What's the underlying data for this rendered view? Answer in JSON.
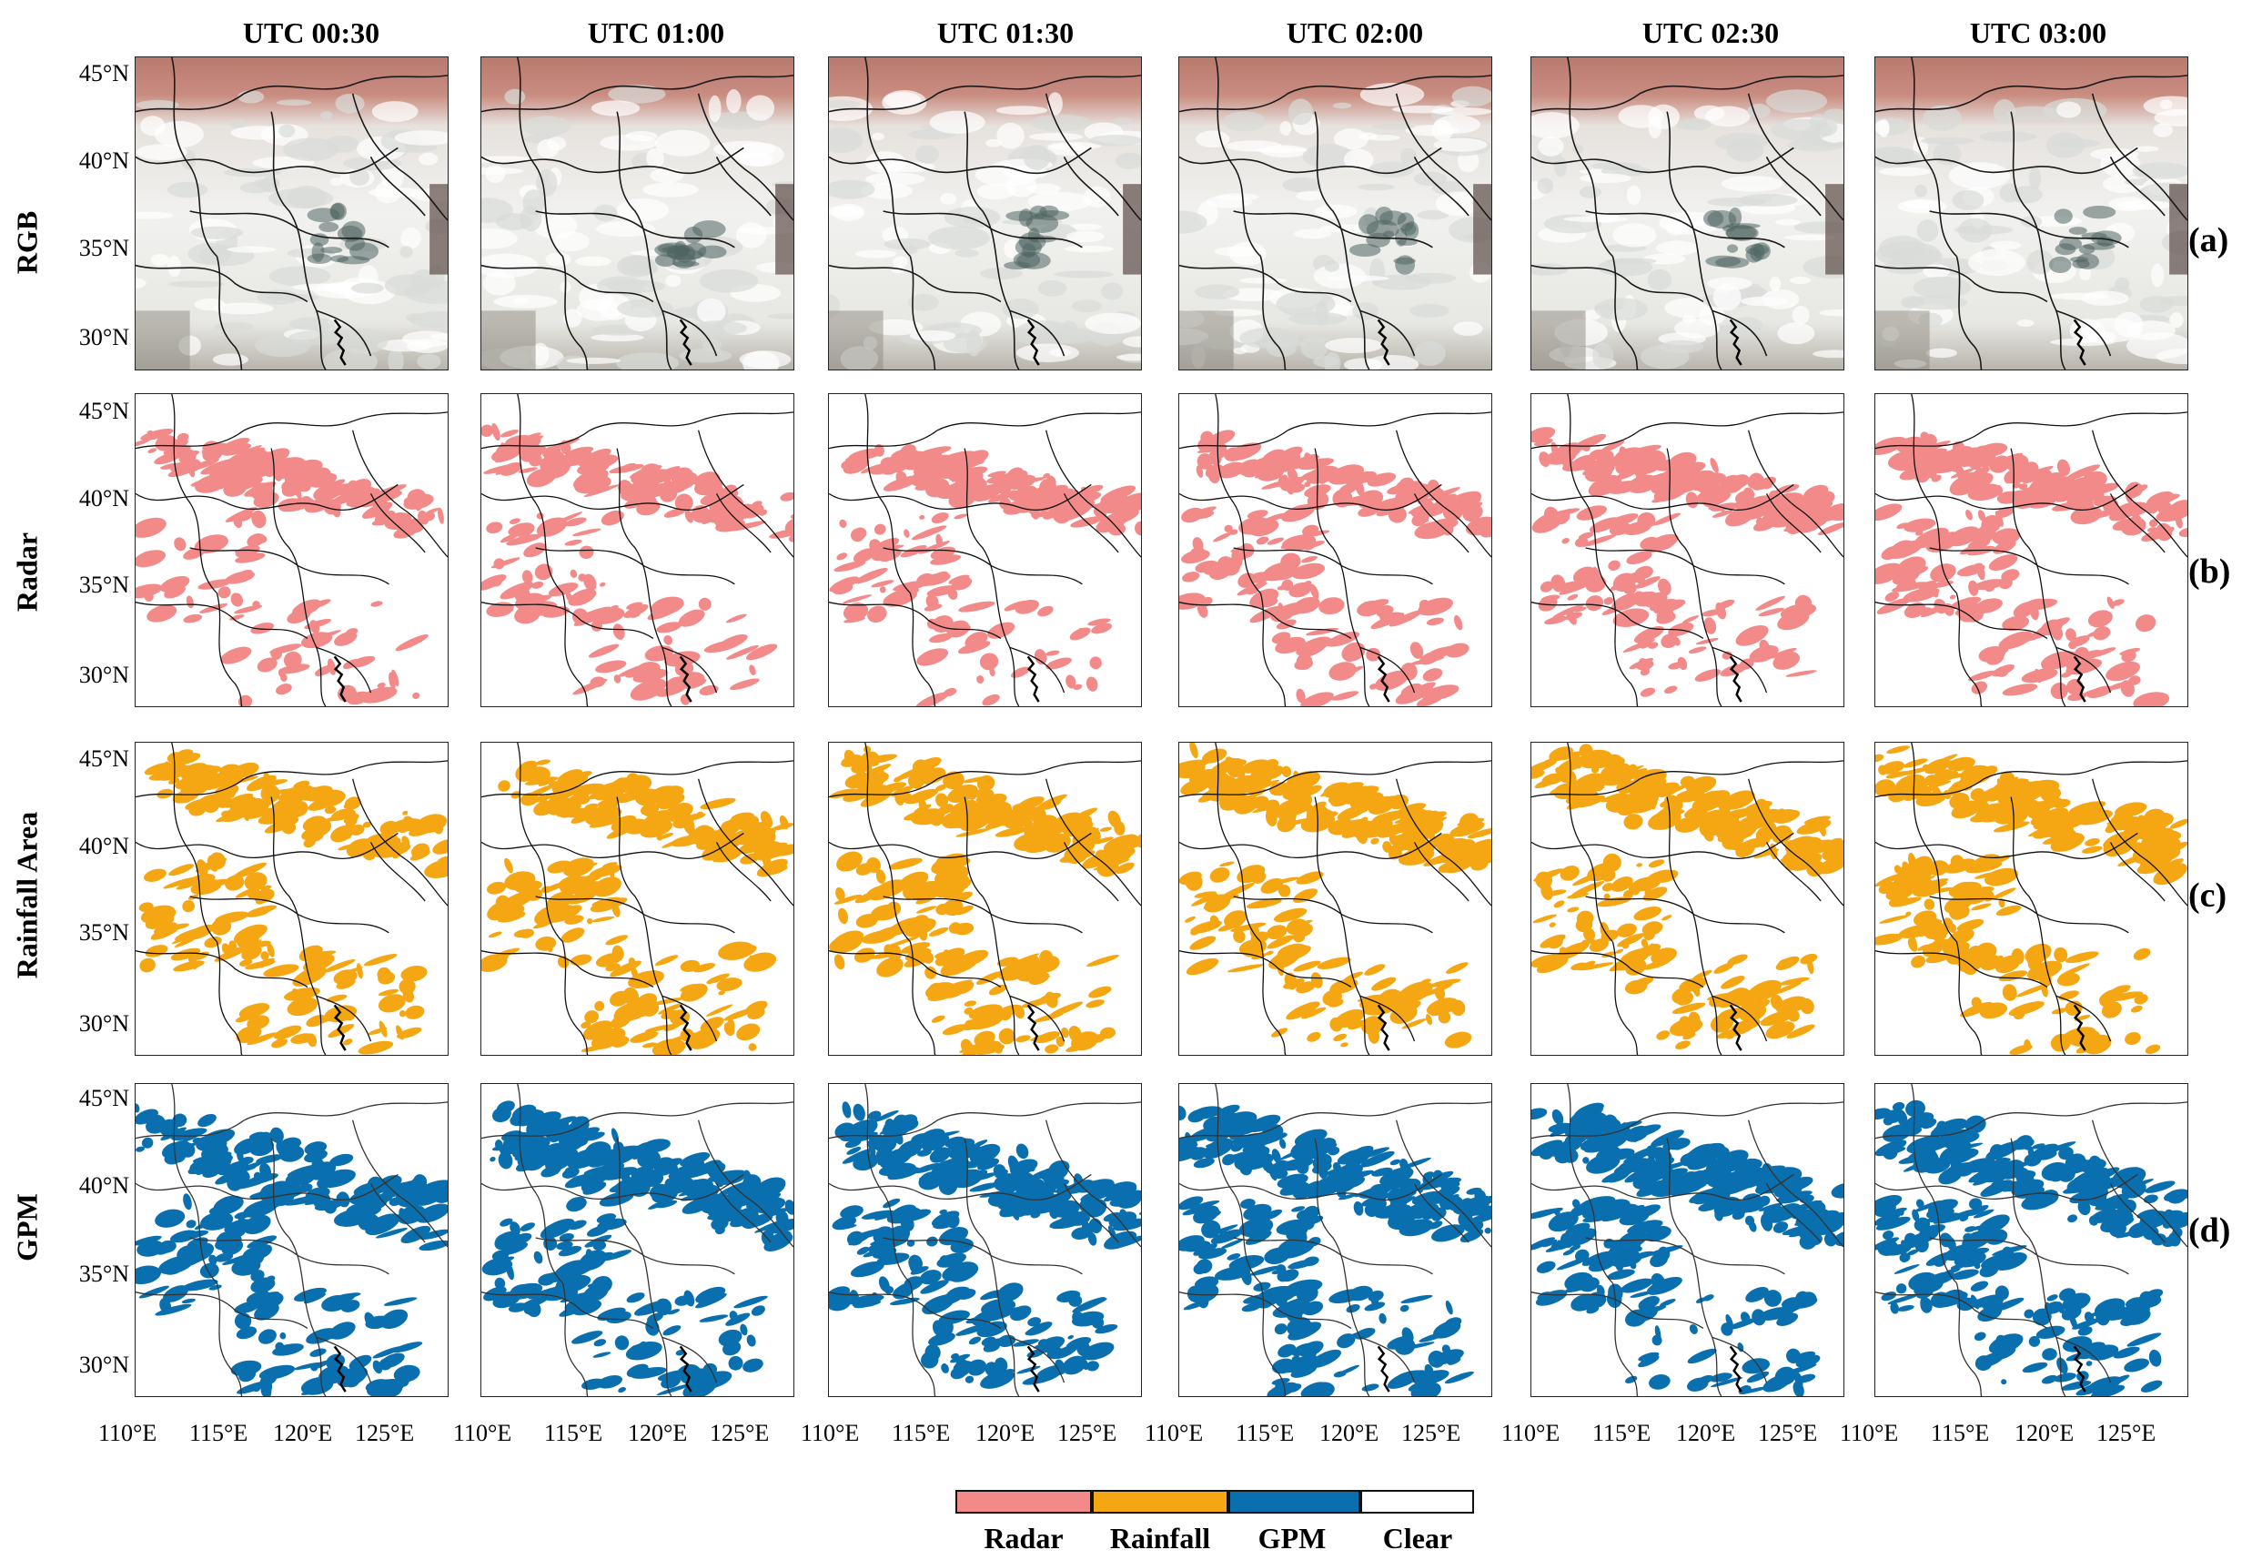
{
  "columns": [
    "UTC 00:30",
    "UTC 01:00",
    "UTC 01:30",
    "UTC 02:00",
    "UTC 02:30",
    "UTC 03:00"
  ],
  "rows": [
    {
      "label": "RGB",
      "tag": "(a)",
      "kind": "rgb"
    },
    {
      "label": "Radar",
      "tag": "(b)",
      "kind": "radar"
    },
    {
      "label": "Rainfall Area",
      "tag": "(c)",
      "kind": "rain"
    },
    {
      "label": "GPM",
      "tag": "(d)",
      "kind": "gpm"
    }
  ],
  "lat_ticks": [
    "45°N",
    "40°N",
    "35°N",
    "30°N"
  ],
  "lon_ticks": [
    "110°E",
    "115°E",
    "120°E",
    "125°E"
  ],
  "colors": {
    "radar": "#f28a8a",
    "rain": "#f5a613",
    "gpm": "#0a6fae",
    "clear": "#ffffff"
  },
  "legend": [
    {
      "label": "Radar",
      "color": "#f28a8a"
    },
    {
      "label": "Rainfall",
      "color": "#f5a613"
    },
    {
      "label": "GPM",
      "color": "#0a6fae"
    },
    {
      "label": "Clear",
      "color": "#ffffff"
    }
  ]
}
